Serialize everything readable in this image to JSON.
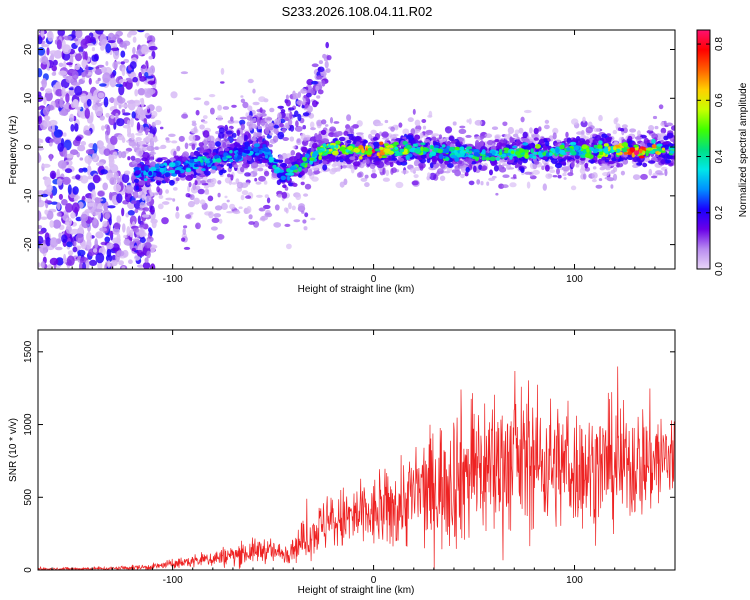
{
  "title": "S233.2026.108.04.11.R02",
  "chart_data": [
    {
      "type": "heatmap",
      "xlabel": "Height of straight line (km)",
      "ylabel": "Frequency (Hz)",
      "xlim": [
        -167,
        150
      ],
      "ylim": [
        -25,
        24
      ],
      "xticks": [
        -100,
        0,
        100
      ],
      "yticks": [
        -20,
        -10,
        0,
        10,
        20
      ],
      "colorbar": {
        "label": "Normalized spectral amplitude",
        "range": [
          0,
          0.85
        ],
        "ticks": [
          "0.0",
          "0.2",
          "0.4",
          "0.6",
          "0.8"
        ],
        "colors": [
          "#e9d6f7",
          "#b98cf0",
          "#6a00e8",
          "#1a00ff",
          "#0090ff",
          "#00e8e8",
          "#00e080",
          "#40ff00",
          "#c8ff00",
          "#ffd000",
          "#ff6000",
          "#ff0000",
          "#ff1070"
        ]
      },
      "ridge": {
        "x": [
          -115,
          -100,
          -85,
          -70,
          -55,
          -45,
          -35,
          -25,
          -15,
          -5,
          0,
          10,
          20,
          40,
          60,
          80,
          100,
          120,
          130,
          150
        ],
        "freq": [
          -5.5,
          -4.5,
          -3.5,
          -1.8,
          -0.5,
          -6,
          -3,
          -0.5,
          -0.2,
          -0.8,
          -0.6,
          -0.7,
          -0.5,
          -1.3,
          -1.3,
          -1.0,
          -0.9,
          -0.6,
          -0.7,
          -0.4
        ],
        "amplitude": [
          0.3,
          0.35,
          0.4,
          0.35,
          0.3,
          0.4,
          0.45,
          0.55,
          0.6,
          0.65,
          0.8,
          0.55,
          0.5,
          0.45,
          0.45,
          0.5,
          0.45,
          0.6,
          0.85,
          0.45
        ]
      },
      "branch": {
        "x": [
          -90,
          -75,
          -60,
          -45,
          -35,
          -28,
          -22
        ],
        "freq": [
          -3,
          0,
          3,
          5,
          9,
          14,
          18
        ]
      }
    },
    {
      "type": "line",
      "xlabel": "Height of straight line (km)",
      "ylabel": "SNR (10 * v/v)",
      "xlim": [
        -167,
        150
      ],
      "ylim": [
        0,
        1650
      ],
      "xticks": [
        -100,
        0,
        100
      ],
      "yticks": [
        0,
        500,
        1000,
        1500
      ],
      "color": "#ee2222",
      "envelope": {
        "x": [
          -167,
          -130,
          -110,
          -90,
          -70,
          -55,
          -45,
          -35,
          -25,
          -10,
          0,
          10,
          20,
          30,
          40,
          50,
          60,
          70,
          80,
          90,
          100,
          110,
          120,
          130,
          140,
          150
        ],
        "center": [
          8,
          10,
          22,
          60,
          100,
          140,
          110,
          200,
          310,
          360,
          380,
          420,
          520,
          560,
          650,
          690,
          720,
          760,
          750,
          720,
          700,
          700,
          720,
          730,
          760,
          760
        ],
        "spread": [
          8,
          10,
          20,
          40,
          70,
          80,
          60,
          120,
          170,
          220,
          220,
          260,
          320,
          380,
          450,
          470,
          480,
          440,
          420,
          400,
          380,
          360,
          380,
          360,
          360,
          340
        ]
      }
    }
  ]
}
